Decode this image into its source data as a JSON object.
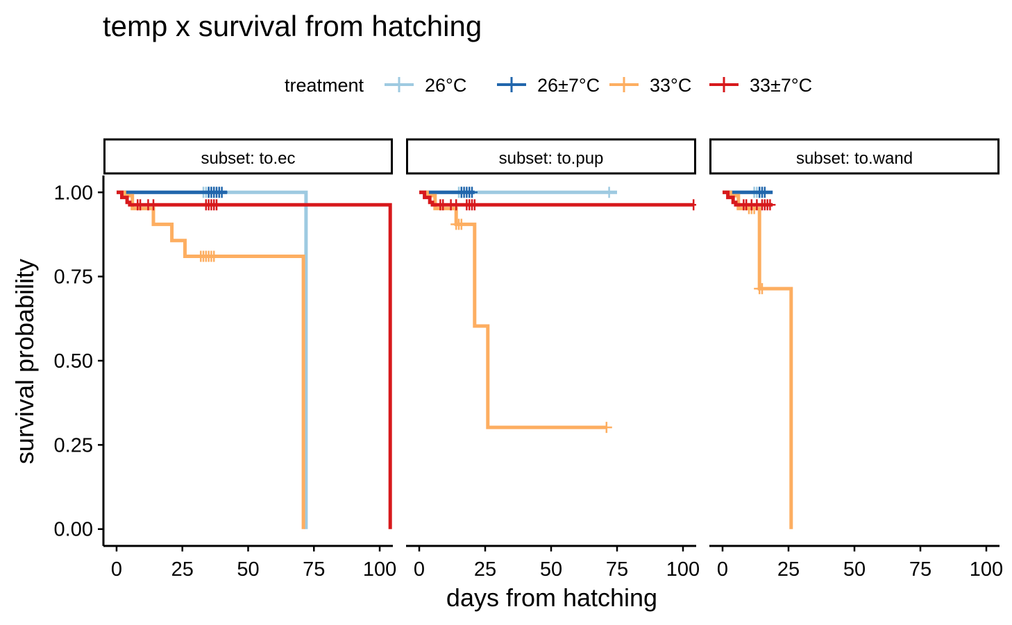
{
  "chart_data": {
    "type": "line",
    "subtype": "kaplan-meier survival (step) curves, faceted",
    "title": "temp x survival from hatching",
    "xlabel": "days from hatching",
    "ylabel": "survival probability",
    "xlim": [
      -5,
      105
    ],
    "ylim": [
      -0.05,
      1.05
    ],
    "x_ticks": [
      0,
      25,
      50,
      75,
      100
    ],
    "x_tick_labels": [
      "0",
      "25",
      "50",
      "75",
      "100"
    ],
    "y_ticks": [
      0,
      0.25,
      0.5,
      0.75,
      1
    ],
    "y_tick_labels": [
      "0.00",
      "0.25",
      "0.50",
      "0.75",
      "1.00"
    ],
    "grid": false,
    "legend": {
      "title": "treatment",
      "position": "top",
      "entries": [
        {
          "label": "26°C",
          "color": "#9ecae1"
        },
        {
          "label": "26±7°C",
          "color": "#2166ac"
        },
        {
          "label": "33°C",
          "color": "#fdae61"
        },
        {
          "label": "33±7°C",
          "color": "#d7191c"
        }
      ]
    },
    "facets": [
      {
        "label": "subset: to.ec",
        "series": [
          {
            "name": "26°C",
            "color": "#9ecae1",
            "steps": [
              [
                0,
                1
              ],
              [
                72,
                1
              ],
              [
                72,
                0
              ]
            ],
            "censored": [
              [
                33,
                1
              ],
              [
                34,
                1
              ],
              [
                35,
                1
              ],
              [
                36,
                1
              ],
              [
                37,
                1
              ]
            ]
          },
          {
            "name": "26±7°C",
            "color": "#2166ac",
            "steps": [
              [
                0,
                1
              ],
              [
                42,
                1
              ]
            ],
            "censored": [
              [
                35,
                1
              ],
              [
                36,
                1
              ],
              [
                37,
                1
              ],
              [
                38,
                1
              ],
              [
                39,
                1
              ],
              [
                40,
                1
              ]
            ]
          },
          {
            "name": "33°C",
            "color": "#fdae61",
            "steps": [
              [
                0,
                1
              ],
              [
                3,
                1
              ],
              [
                3,
                0.99
              ],
              [
                6,
                0.99
              ],
              [
                6,
                0.952
              ],
              [
                14,
                0.952
              ],
              [
                14,
                0.905
              ],
              [
                21,
                0.905
              ],
              [
                21,
                0.857
              ],
              [
                26,
                0.857
              ],
              [
                26,
                0.81
              ],
              [
                71,
                0.81
              ],
              [
                71,
                0
              ]
            ],
            "censored": [
              [
                32,
                0.81
              ],
              [
                33,
                0.81
              ],
              [
                34,
                0.81
              ],
              [
                35,
                0.81
              ],
              [
                36,
                0.81
              ],
              [
                37,
                0.81
              ]
            ]
          },
          {
            "name": "33±7°C",
            "color": "#d7191c",
            "steps": [
              [
                0,
                1
              ],
              [
                2,
                1
              ],
              [
                2,
                0.985
              ],
              [
                4,
                0.985
              ],
              [
                4,
                0.97
              ],
              [
                5,
                0.97
              ],
              [
                5,
                0.963
              ],
              [
                104,
                0.963
              ],
              [
                104,
                0
              ]
            ],
            "censored": [
              [
                8,
                0.963
              ],
              [
                9,
                0.963
              ],
              [
                12,
                0.963
              ],
              [
                14,
                0.963
              ],
              [
                34,
                0.963
              ],
              [
                35,
                0.963
              ],
              [
                36,
                0.963
              ],
              [
                37,
                0.963
              ],
              [
                38,
                0.963
              ]
            ]
          }
        ]
      },
      {
        "label": "subset: to.pup",
        "series": [
          {
            "name": "26°C",
            "color": "#9ecae1",
            "steps": [
              [
                0,
                1
              ],
              [
                75,
                1
              ]
            ],
            "censored": [
              [
                15,
                1
              ],
              [
                16,
                1
              ],
              [
                72,
                1
              ]
            ]
          },
          {
            "name": "26±7°C",
            "color": "#2166ac",
            "steps": [
              [
                0,
                1
              ],
              [
                21,
                1
              ]
            ],
            "censored": [
              [
                16,
                1
              ],
              [
                17,
                1
              ],
              [
                18,
                1
              ],
              [
                19,
                1
              ],
              [
                20,
                1
              ]
            ]
          },
          {
            "name": "33°C",
            "color": "#fdae61",
            "steps": [
              [
                0,
                1
              ],
              [
                3,
                1
              ],
              [
                3,
                0.99
              ],
              [
                6,
                0.99
              ],
              [
                6,
                0.952
              ],
              [
                14,
                0.952
              ],
              [
                14,
                0.905
              ],
              [
                21,
                0.905
              ],
              [
                21,
                0.603
              ],
              [
                26,
                0.603
              ],
              [
                26,
                0.302
              ],
              [
                71,
                0.302
              ]
            ],
            "censored": [
              [
                14,
                0.905
              ],
              [
                15,
                0.905
              ],
              [
                16,
                0.905
              ],
              [
                71,
                0.302
              ]
            ]
          },
          {
            "name": "33±7°C",
            "color": "#d7191c",
            "steps": [
              [
                0,
                1
              ],
              [
                2,
                1
              ],
              [
                2,
                0.985
              ],
              [
                4,
                0.985
              ],
              [
                4,
                0.97
              ],
              [
                5,
                0.97
              ],
              [
                5,
                0.963
              ],
              [
                104,
                0.963
              ]
            ],
            "censored": [
              [
                8,
                0.963
              ],
              [
                9,
                0.963
              ],
              [
                12,
                0.963
              ],
              [
                14,
                0.963
              ],
              [
                18,
                0.963
              ],
              [
                19,
                0.963
              ],
              [
                20,
                0.963
              ],
              [
                21,
                0.963
              ],
              [
                104,
                0.963
              ]
            ]
          }
        ]
      },
      {
        "label": "subset: to.wand",
        "series": [
          {
            "name": "26°C",
            "color": "#9ecae1",
            "steps": [
              [
                0,
                1
              ],
              [
                15,
                1
              ]
            ],
            "censored": [
              [
                12,
                1
              ],
              [
                13,
                1
              ],
              [
                14,
                1
              ]
            ]
          },
          {
            "name": "26±7°C",
            "color": "#2166ac",
            "steps": [
              [
                0,
                1
              ],
              [
                19,
                1
              ]
            ],
            "censored": [
              [
                14,
                1
              ],
              [
                15,
                1
              ],
              [
                16,
                1
              ]
            ]
          },
          {
            "name": "33°C",
            "color": "#fdae61",
            "steps": [
              [
                0,
                1
              ],
              [
                3,
                1
              ],
              [
                3,
                0.99
              ],
              [
                6,
                0.99
              ],
              [
                6,
                0.952
              ],
              [
                14,
                0.952
              ],
              [
                14,
                0.714
              ],
              [
                26,
                0.714
              ],
              [
                26,
                0
              ]
            ],
            "censored": [
              [
                10,
                0.952
              ],
              [
                11,
                0.952
              ],
              [
                12,
                0.952
              ],
              [
                14,
                0.714
              ],
              [
                15,
                0.714
              ]
            ]
          },
          {
            "name": "33±7°C",
            "color": "#d7191c",
            "steps": [
              [
                0,
                1
              ],
              [
                2,
                1
              ],
              [
                2,
                0.985
              ],
              [
                4,
                0.985
              ],
              [
                4,
                0.97
              ],
              [
                5,
                0.97
              ],
              [
                5,
                0.963
              ],
              [
                19,
                0.963
              ]
            ],
            "censored": [
              [
                8,
                0.963
              ],
              [
                9,
                0.963
              ],
              [
                11,
                0.963
              ],
              [
                13,
                0.963
              ],
              [
                15,
                0.963
              ],
              [
                16,
                0.963
              ],
              [
                17,
                0.963
              ],
              [
                18,
                0.963
              ]
            ]
          }
        ]
      }
    ]
  }
}
